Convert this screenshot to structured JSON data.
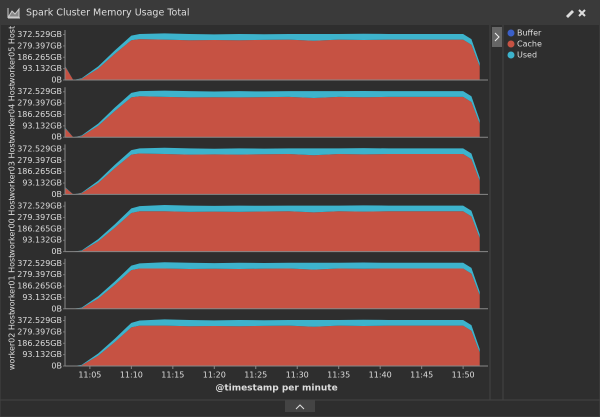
{
  "header": {
    "title": "Spark Cluster Memory Usage Total"
  },
  "chart_data": [
    {
      "type": "area",
      "ylabel": "worker05 Host",
      "x": [
        "11:02",
        "11:03",
        "11:04",
        "11:06",
        "11:08",
        "11:10",
        "11:11",
        "11:14",
        "11:17",
        "11:20",
        "11:23",
        "11:26",
        "11:29",
        "11:32",
        "11:35",
        "11:38",
        "11:41",
        "11:44",
        "11:47",
        "11:50",
        "11:51",
        "11:52"
      ],
      "xlim": [
        "11:02",
        "11:53"
      ],
      "ylim": [
        0,
        440000000000.0
      ],
      "yticks": [
        {
          "value": 0,
          "label": "0B"
        },
        {
          "value": 100000000000.0,
          "label": "93.132GB"
        },
        {
          "value": 200000000000.0,
          "label": "186.265GB"
        },
        {
          "value": 300000000000.0,
          "label": "279.397GB"
        },
        {
          "value": 400000000000.0,
          "label": "372.529GB"
        }
      ],
      "series": [
        {
          "name": "Buffer",
          "color": "#3a5fc8",
          "values": [
            0,
            0,
            0,
            0,
            0,
            0,
            0,
            0,
            0,
            0,
            0,
            0,
            0,
            0,
            0,
            0,
            0,
            0,
            0,
            0,
            0,
            0
          ]
        },
        {
          "name": "Cache",
          "color": "#c65243",
          "values": [
            120000000000.0,
            0,
            10000000000.0,
            100000000000.0,
            230000000000.0,
            350000000000.0,
            360000000000.0,
            355000000000.0,
            350000000000.0,
            352000000000.0,
            350000000000.0,
            353000000000.0,
            355000000000.0,
            345000000000.0,
            355000000000.0,
            352000000000.0,
            355000000000.0,
            355000000000.0,
            355000000000.0,
            355000000000.0,
            310000000000.0,
            120000000000.0
          ]
        },
        {
          "name": "Used",
          "color": "#3db3cc",
          "values": [
            5000000000.0,
            0,
            5000000000.0,
            20000000000.0,
            30000000000.0,
            40000000000.0,
            45000000000.0,
            55000000000.0,
            55000000000.0,
            50000000000.0,
            55000000000.0,
            50000000000.0,
            50000000000.0,
            60000000000.0,
            50000000000.0,
            55000000000.0,
            50000000000.0,
            50000000000.0,
            50000000000.0,
            50000000000.0,
            50000000000.0,
            30000000000.0
          ]
        }
      ]
    },
    {
      "type": "area",
      "ylabel": "worker04 Host",
      "x": [
        "11:02",
        "11:03",
        "11:04",
        "11:06",
        "11:08",
        "11:10",
        "11:11",
        "11:14",
        "11:17",
        "11:20",
        "11:23",
        "11:26",
        "11:29",
        "11:32",
        "11:35",
        "11:38",
        "11:41",
        "11:44",
        "11:47",
        "11:50",
        "11:51",
        "11:52"
      ],
      "xlim": [
        "11:02",
        "11:53"
      ],
      "ylim": [
        0,
        440000000000.0
      ],
      "yticks": [
        {
          "value": 0,
          "label": "0B"
        },
        {
          "value": 100000000000.0,
          "label": "93.132GB"
        },
        {
          "value": 200000000000.0,
          "label": "186.265GB"
        },
        {
          "value": 300000000000.0,
          "label": "279.397GB"
        },
        {
          "value": 400000000000.0,
          "label": "372.529GB"
        }
      ],
      "series": [
        {
          "name": "Buffer",
          "color": "#3a5fc8",
          "values": [
            0,
            0,
            0,
            0,
            0,
            0,
            0,
            0,
            0,
            0,
            0,
            0,
            0,
            0,
            0,
            0,
            0,
            0,
            0,
            0,
            0,
            0
          ]
        },
        {
          "name": "Cache",
          "color": "#c65243",
          "values": [
            80000000000.0,
            0,
            10000000000.0,
            100000000000.0,
            230000000000.0,
            350000000000.0,
            360000000000.0,
            355000000000.0,
            350000000000.0,
            352000000000.0,
            350000000000.0,
            353000000000.0,
            355000000000.0,
            345000000000.0,
            355000000000.0,
            352000000000.0,
            355000000000.0,
            355000000000.0,
            355000000000.0,
            355000000000.0,
            310000000000.0,
            120000000000.0
          ]
        },
        {
          "name": "Used",
          "color": "#3db3cc",
          "values": [
            5000000000.0,
            0,
            5000000000.0,
            20000000000.0,
            30000000000.0,
            40000000000.0,
            45000000000.0,
            55000000000.0,
            55000000000.0,
            50000000000.0,
            55000000000.0,
            50000000000.0,
            50000000000.0,
            60000000000.0,
            50000000000.0,
            55000000000.0,
            50000000000.0,
            50000000000.0,
            50000000000.0,
            50000000000.0,
            50000000000.0,
            30000000000.0
          ]
        }
      ]
    },
    {
      "type": "area",
      "ylabel": "worker03 Host",
      "x": [
        "11:02",
        "11:03",
        "11:04",
        "11:06",
        "11:08",
        "11:10",
        "11:11",
        "11:14",
        "11:17",
        "11:20",
        "11:23",
        "11:26",
        "11:29",
        "11:32",
        "11:35",
        "11:38",
        "11:41",
        "11:44",
        "11:47",
        "11:50",
        "11:51",
        "11:52"
      ],
      "xlim": [
        "11:02",
        "11:53"
      ],
      "ylim": [
        0,
        440000000000.0
      ],
      "yticks": [
        {
          "value": 0,
          "label": "0B"
        },
        {
          "value": 100000000000.0,
          "label": "93.132GB"
        },
        {
          "value": 200000000000.0,
          "label": "186.265GB"
        },
        {
          "value": 300000000000.0,
          "label": "279.397GB"
        },
        {
          "value": 400000000000.0,
          "label": "372.529GB"
        }
      ],
      "series": [
        {
          "name": "Buffer",
          "color": "#3a5fc8",
          "values": [
            0,
            0,
            0,
            0,
            0,
            0,
            0,
            0,
            0,
            0,
            0,
            0,
            0,
            0,
            0,
            0,
            0,
            0,
            0,
            0,
            0,
            0
          ]
        },
        {
          "name": "Cache",
          "color": "#c65243",
          "values": [
            60000000000.0,
            0,
            10000000000.0,
            100000000000.0,
            230000000000.0,
            350000000000.0,
            360000000000.0,
            355000000000.0,
            350000000000.0,
            352000000000.0,
            350000000000.0,
            353000000000.0,
            355000000000.0,
            345000000000.0,
            355000000000.0,
            352000000000.0,
            355000000000.0,
            355000000000.0,
            355000000000.0,
            355000000000.0,
            310000000000.0,
            120000000000.0
          ]
        },
        {
          "name": "Used",
          "color": "#3db3cc",
          "values": [
            5000000000.0,
            0,
            5000000000.0,
            20000000000.0,
            30000000000.0,
            40000000000.0,
            45000000000.0,
            55000000000.0,
            55000000000.0,
            50000000000.0,
            55000000000.0,
            50000000000.0,
            50000000000.0,
            60000000000.0,
            50000000000.0,
            55000000000.0,
            50000000000.0,
            50000000000.0,
            50000000000.0,
            50000000000.0,
            50000000000.0,
            30000000000.0
          ]
        }
      ]
    },
    {
      "type": "area",
      "ylabel": "worker00 Host",
      "x": [
        "11:02",
        "11:03",
        "11:04",
        "11:06",
        "11:08",
        "11:10",
        "11:11",
        "11:14",
        "11:17",
        "11:20",
        "11:23",
        "11:26",
        "11:29",
        "11:32",
        "11:35",
        "11:38",
        "11:41",
        "11:44",
        "11:47",
        "11:50",
        "11:51",
        "11:52"
      ],
      "xlim": [
        "11:02",
        "11:53"
      ],
      "ylim": [
        0,
        440000000000.0
      ],
      "yticks": [
        {
          "value": 0,
          "label": "0B"
        },
        {
          "value": 100000000000.0,
          "label": "93.132GB"
        },
        {
          "value": 200000000000.0,
          "label": "186.265GB"
        },
        {
          "value": 300000000000.0,
          "label": "279.397GB"
        },
        {
          "value": 400000000000.0,
          "label": "372.529GB"
        }
      ],
      "series": [
        {
          "name": "Buffer",
          "color": "#3a5fc8",
          "values": [
            0,
            0,
            0,
            0,
            0,
            0,
            0,
            0,
            0,
            0,
            0,
            0,
            0,
            0,
            0,
            0,
            0,
            0,
            0,
            0,
            0,
            0
          ]
        },
        {
          "name": "Cache",
          "color": "#c65243",
          "values": [
            0,
            0,
            5000000000.0,
            90000000000.0,
            210000000000.0,
            340000000000.0,
            355000000000.0,
            355000000000.0,
            350000000000.0,
            352000000000.0,
            350000000000.0,
            353000000000.0,
            355000000000.0,
            345000000000.0,
            355000000000.0,
            352000000000.0,
            355000000000.0,
            355000000000.0,
            355000000000.0,
            355000000000.0,
            310000000000.0,
            120000000000.0
          ]
        },
        {
          "name": "Used",
          "color": "#3db3cc",
          "values": [
            0,
            0,
            5000000000.0,
            20000000000.0,
            30000000000.0,
            40000000000.0,
            45000000000.0,
            55000000000.0,
            55000000000.0,
            50000000000.0,
            55000000000.0,
            50000000000.0,
            50000000000.0,
            60000000000.0,
            50000000000.0,
            55000000000.0,
            50000000000.0,
            50000000000.0,
            50000000000.0,
            50000000000.0,
            50000000000.0,
            30000000000.0
          ]
        }
      ]
    },
    {
      "type": "area",
      "ylabel": "worker01 Host",
      "x": [
        "11:02",
        "11:03",
        "11:04",
        "11:06",
        "11:08",
        "11:10",
        "11:11",
        "11:14",
        "11:17",
        "11:20",
        "11:23",
        "11:26",
        "11:29",
        "11:32",
        "11:35",
        "11:38",
        "11:41",
        "11:44",
        "11:47",
        "11:50",
        "11:51",
        "11:52"
      ],
      "xlim": [
        "11:02",
        "11:53"
      ],
      "ylim": [
        0,
        440000000000.0
      ],
      "yticks": [
        {
          "value": 0,
          "label": "0B"
        },
        {
          "value": 100000000000.0,
          "label": "93.132GB"
        },
        {
          "value": 200000000000.0,
          "label": "186.265GB"
        },
        {
          "value": 300000000000.0,
          "label": "279.397GB"
        },
        {
          "value": 400000000000.0,
          "label": "372.529GB"
        }
      ],
      "series": [
        {
          "name": "Buffer",
          "color": "#3a5fc8",
          "values": [
            0,
            0,
            0,
            0,
            0,
            0,
            0,
            0,
            0,
            0,
            0,
            0,
            0,
            0,
            0,
            0,
            0,
            0,
            0,
            0,
            0,
            0
          ]
        },
        {
          "name": "Cache",
          "color": "#c65243",
          "values": [
            0,
            0,
            5000000000.0,
            90000000000.0,
            210000000000.0,
            340000000000.0,
            355000000000.0,
            355000000000.0,
            350000000000.0,
            352000000000.0,
            350000000000.0,
            353000000000.0,
            355000000000.0,
            345000000000.0,
            355000000000.0,
            352000000000.0,
            355000000000.0,
            355000000000.0,
            355000000000.0,
            355000000000.0,
            310000000000.0,
            120000000000.0
          ]
        },
        {
          "name": "Used",
          "color": "#3db3cc",
          "values": [
            0,
            0,
            5000000000.0,
            20000000000.0,
            30000000000.0,
            40000000000.0,
            45000000000.0,
            55000000000.0,
            55000000000.0,
            50000000000.0,
            55000000000.0,
            50000000000.0,
            50000000000.0,
            60000000000.0,
            50000000000.0,
            55000000000.0,
            50000000000.0,
            50000000000.0,
            50000000000.0,
            50000000000.0,
            50000000000.0,
            30000000000.0
          ]
        }
      ]
    },
    {
      "type": "area",
      "ylabel": "worker02 Host",
      "xlabel": "@timestamp per minute",
      "x": [
        "11:02",
        "11:03",
        "11:04",
        "11:06",
        "11:08",
        "11:10",
        "11:11",
        "11:14",
        "11:17",
        "11:20",
        "11:23",
        "11:26",
        "11:29",
        "11:32",
        "11:35",
        "11:38",
        "11:41",
        "11:44",
        "11:47",
        "11:50",
        "11:51",
        "11:52"
      ],
      "xlim": [
        "11:02",
        "11:53"
      ],
      "xticks": [
        "11:05",
        "11:10",
        "11:15",
        "11:20",
        "11:25",
        "11:30",
        "11:35",
        "11:40",
        "11:45",
        "11:50"
      ],
      "ylim": [
        0,
        440000000000.0
      ],
      "yticks": [
        {
          "value": 0,
          "label": "0B"
        },
        {
          "value": 100000000000.0,
          "label": "93.132GB"
        },
        {
          "value": 200000000000.0,
          "label": "186.265GB"
        },
        {
          "value": 300000000000.0,
          "label": "279.397GB"
        },
        {
          "value": 400000000000.0,
          "label": "372.529GB"
        }
      ],
      "series": [
        {
          "name": "Buffer",
          "color": "#3a5fc8",
          "values": [
            0,
            0,
            0,
            0,
            0,
            0,
            0,
            0,
            0,
            0,
            0,
            0,
            0,
            0,
            0,
            0,
            0,
            0,
            0,
            0,
            0,
            0
          ]
        },
        {
          "name": "Cache",
          "color": "#c65243",
          "values": [
            0,
            0,
            5000000000.0,
            90000000000.0,
            210000000000.0,
            340000000000.0,
            355000000000.0,
            355000000000.0,
            350000000000.0,
            352000000000.0,
            350000000000.0,
            353000000000.0,
            355000000000.0,
            345000000000.0,
            355000000000.0,
            352000000000.0,
            355000000000.0,
            355000000000.0,
            355000000000.0,
            355000000000.0,
            310000000000.0,
            120000000000.0
          ]
        },
        {
          "name": "Used",
          "color": "#3db3cc",
          "values": [
            0,
            0,
            5000000000.0,
            20000000000.0,
            30000000000.0,
            40000000000.0,
            45000000000.0,
            55000000000.0,
            55000000000.0,
            50000000000.0,
            55000000000.0,
            50000000000.0,
            50000000000.0,
            60000000000.0,
            50000000000.0,
            55000000000.0,
            50000000000.0,
            50000000000.0,
            50000000000.0,
            50000000000.0,
            50000000000.0,
            30000000000.0
          ]
        }
      ]
    }
  ]
}
